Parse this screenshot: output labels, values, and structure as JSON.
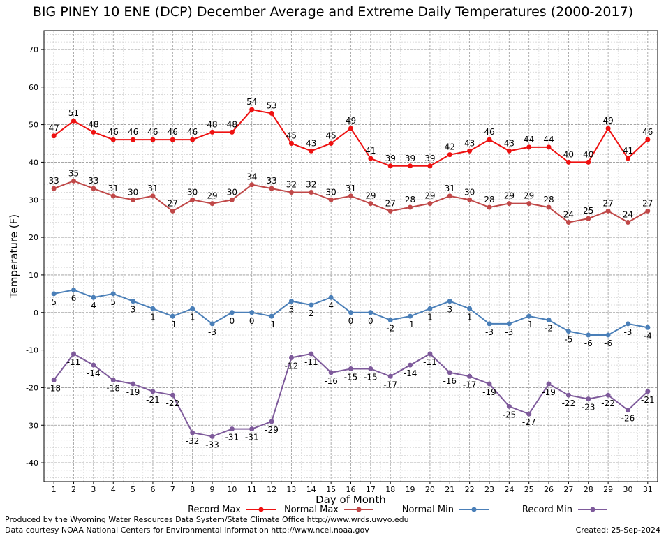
{
  "chart_data": {
    "type": "line",
    "title": "BIG PINEY 10 ENE (DCP) December Average and Extreme Daily Temperatures (2000-2017)",
    "xlabel": "Day of Month",
    "ylabel": "Temperature (F)",
    "ylim": [
      -45,
      75
    ],
    "yticks": [
      -40,
      -30,
      -20,
      -10,
      0,
      10,
      20,
      30,
      40,
      50,
      60,
      70
    ],
    "x": [
      1,
      2,
      3,
      4,
      5,
      6,
      7,
      8,
      9,
      10,
      11,
      12,
      13,
      14,
      15,
      16,
      17,
      18,
      19,
      20,
      21,
      22,
      23,
      24,
      25,
      26,
      27,
      28,
      29,
      30,
      31
    ],
    "grid": true,
    "legend_position": "bottom",
    "series": [
      {
        "name": "Record Max",
        "color": "#ee1111",
        "label_pos": "above",
        "values": [
          47,
          51,
          48,
          46,
          46,
          46,
          46,
          46,
          48,
          48,
          54,
          53,
          45,
          43,
          45,
          49,
          41,
          39,
          39,
          39,
          42,
          43,
          46,
          43,
          44,
          44,
          40,
          40,
          49,
          41,
          46
        ]
      },
      {
        "name": "Normal Max",
        "color": "#c04848",
        "label_pos": "above",
        "values": [
          33,
          35,
          33,
          31,
          30,
          31,
          27,
          30,
          29,
          30,
          34,
          33,
          32,
          32,
          30,
          31,
          29,
          27,
          28,
          29,
          31,
          30,
          28,
          29,
          29,
          28,
          24,
          25,
          27,
          24,
          27
        ]
      },
      {
        "name": "Normal Min",
        "color": "#4a7fb8",
        "label_pos": "below",
        "values": [
          5,
          6,
          4,
          5,
          3,
          1,
          -1,
          1,
          -3,
          0,
          0,
          -1,
          3,
          2,
          4,
          0,
          0,
          -2,
          -1,
          1,
          3,
          1,
          -3,
          -3,
          -1,
          -2,
          -5,
          -6,
          -6,
          -3,
          -4
        ]
      },
      {
        "name": "Record Min",
        "color": "#7e5a9b",
        "label_pos": "below",
        "values": [
          -18,
          -11,
          -14,
          -18,
          -19,
          -21,
          -22,
          -32,
          -33,
          -31,
          -31,
          -29,
          -12,
          -11,
          -16,
          -15,
          -15,
          -17,
          -14,
          -11,
          -16,
          -17,
          -19,
          -25,
          -27,
          -19,
          -22,
          -23,
          -22,
          -26,
          -21
        ]
      }
    ]
  },
  "footer": {
    "produced_by": "Produced by the Wyoming Water Resources Data System/State Climate Office http://www.wrds.uwyo.edu",
    "courtesy": "Data courtesy NOAA National Centers for Environmental Information http://www.ncei.noaa.gov",
    "created": "Created:  25-Sep-2024"
  }
}
